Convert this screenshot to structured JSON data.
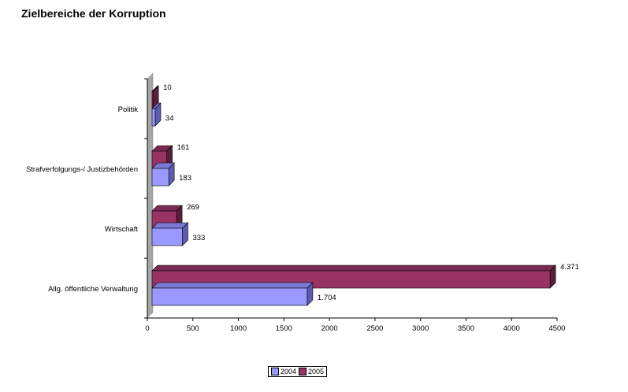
{
  "chart_data": {
    "type": "bar",
    "orientation": "horizontal",
    "title": "Zielbereiche der Korruption",
    "categories": [
      "Politik",
      "Strafverfolgungs-/ Justizbehörden",
      "Wirtschaft",
      "Allg. öffentliche Verwaltung"
    ],
    "series": [
      {
        "name": "2004",
        "values": [
          34,
          183,
          333,
          1704
        ],
        "labels": [
          "34",
          "183",
          "333",
          "1.704"
        ],
        "color": "#9999ff"
      },
      {
        "name": "2005",
        "values": [
          10,
          161,
          269,
          4371
        ],
        "labels": [
          "10",
          "161",
          "269",
          "4.371"
        ],
        "color": "#993366"
      }
    ],
    "xlim": [
      0,
      4500
    ],
    "xticks": [
      "0",
      "500",
      "1000",
      "1500",
      "2000",
      "2500",
      "3000",
      "3500",
      "4000",
      "4500"
    ],
    "grid": false,
    "legend": "bottom",
    "style": "3d"
  }
}
